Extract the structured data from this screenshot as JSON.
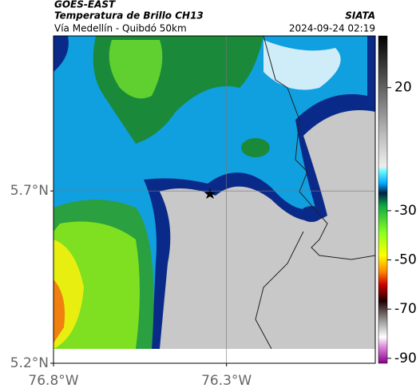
{
  "header": {
    "satellite": "GOES-EAST",
    "product": "Temperatura de Brillo CH13",
    "route": "Vía Medellín - Quibdó 50km",
    "source": "SIATA",
    "datetime": "2024-09-24 02:19"
  },
  "map": {
    "xlim": [
      -76.8,
      -75.87
    ],
    "ylim": [
      5.2,
      6.15
    ],
    "xticks": [
      {
        "value": -76.8,
        "label": "76.8°W"
      },
      {
        "value": -76.3,
        "label": "76.3°W"
      }
    ],
    "yticks": [
      {
        "value": 5.7,
        "label": "5.7°N"
      },
      {
        "value": 5.2,
        "label": "5.2°N"
      }
    ]
  },
  "colorbar": {
    "lim": [
      -92,
      41
    ],
    "ticks": [
      20,
      -30,
      -50,
      -70,
      -90
    ]
  }
}
